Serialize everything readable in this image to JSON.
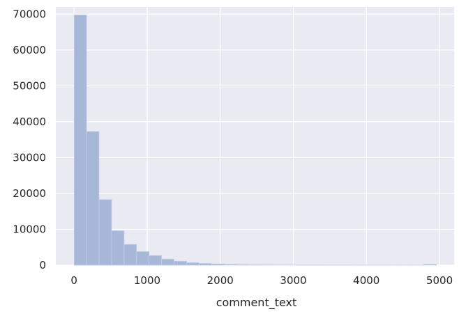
{
  "chart_data": {
    "type": "bar",
    "subtype": "histogram",
    "title": "",
    "xlabel": "comment_text",
    "ylabel": "",
    "xlim": [
      -250,
      5200
    ],
    "ylim": [
      0,
      72000
    ],
    "grid": true,
    "legend": "none",
    "bin_width": 171,
    "x_ticks": [
      0,
      1000,
      2000,
      3000,
      4000,
      5000
    ],
    "x_tick_labels": [
      "0",
      "1000",
      "2000",
      "3000",
      "4000",
      "5000"
    ],
    "y_ticks": [
      0,
      10000,
      20000,
      30000,
      40000,
      50000,
      60000,
      70000
    ],
    "y_tick_labels": [
      "0",
      "10000",
      "20000",
      "30000",
      "40000",
      "50000",
      "60000",
      "70000"
    ],
    "series": [
      {
        "bin_start": [
          0,
          171,
          342,
          513,
          684,
          855,
          1026,
          1197,
          1368,
          1539,
          1710,
          1881,
          2052,
          2223,
          2394,
          2565,
          2736,
          2907,
          3078,
          3249,
          3420,
          3591,
          3762,
          3933,
          4104,
          4275,
          4446,
          4617,
          4788
        ],
        "values": [
          69800,
          37300,
          18300,
          9600,
          5800,
          3800,
          2700,
          1700,
          1100,
          700,
          500,
          350,
          250,
          180,
          130,
          100,
          80,
          60,
          50,
          40,
          30,
          30,
          25,
          20,
          20,
          15,
          15,
          15,
          250
        ]
      }
    ],
    "colors": {
      "bar": "#a7b7d8",
      "bar_edge": "#c4cfe6",
      "background": "#eaeaf2",
      "grid": "#ffffff",
      "text": "#262626"
    }
  }
}
